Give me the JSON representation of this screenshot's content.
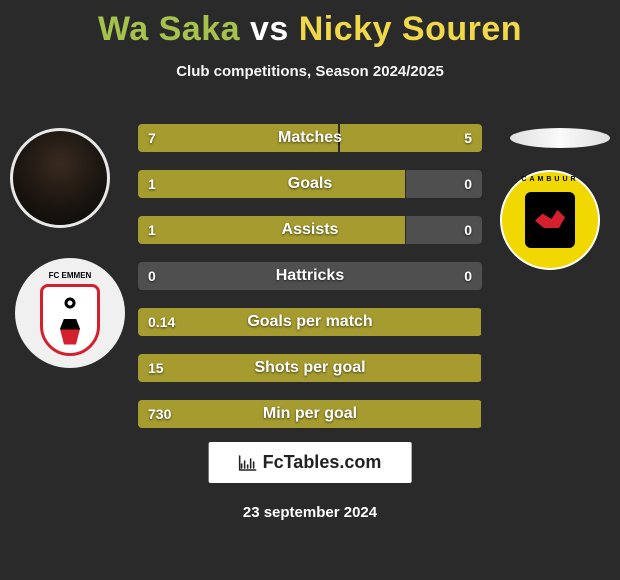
{
  "title": {
    "player1": "Wa Saka",
    "vs": " vs ",
    "player2": "Nicky Souren",
    "color1": "#a5c24d",
    "color2": "#f0d84a"
  },
  "subtitle": "Club competitions, Season 2024/2025",
  "club_left_name": "FC EMMEN",
  "club_right_name": "CAMBUUR",
  "stats": {
    "bar_color": "#a59b2f",
    "track_color": "#4f4f4f",
    "label_fontsize": 16,
    "value_fontsize": 14,
    "rows": [
      {
        "label": "Matches",
        "left": "7",
        "right": "5",
        "left_w": 58.3,
        "right_w": 41.7
      },
      {
        "label": "Goals",
        "left": "1",
        "right": "0",
        "left_w": 78.0,
        "right_w": 0.0
      },
      {
        "label": "Assists",
        "left": "1",
        "right": "0",
        "left_w": 78.0,
        "right_w": 0.0
      },
      {
        "label": "Hattricks",
        "left": "0",
        "right": "0",
        "left_w": 0.0,
        "right_w": 0.0
      },
      {
        "label": "Goals per match",
        "left": "0.14",
        "right": "",
        "left_w": 100.0,
        "right_w": 0.0
      },
      {
        "label": "Shots per goal",
        "left": "15",
        "right": "",
        "left_w": 100.0,
        "right_w": 0.0
      },
      {
        "label": "Min per goal",
        "left": "730",
        "right": "",
        "left_w": 100.0,
        "right_w": 0.0
      }
    ]
  },
  "watermark": "FcTables.com",
  "date": "23 september 2024",
  "colors": {
    "background": "#2a2a2a",
    "text": "#ffffff"
  }
}
